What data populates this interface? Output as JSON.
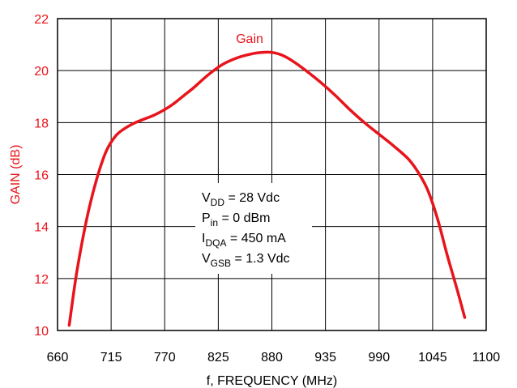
{
  "chart_data": {
    "type": "line",
    "title": "",
    "xlabel": "f, FREQUENCY (MHz)",
    "ylabel": "GAIN (dB)",
    "xlim": [
      660,
      1100
    ],
    "ylim": [
      10,
      22
    ],
    "x_ticks": [
      660,
      715,
      770,
      825,
      880,
      935,
      990,
      1045,
      1100
    ],
    "y_ticks": [
      10,
      12,
      14,
      16,
      18,
      20,
      22
    ],
    "grid": true,
    "series": [
      {
        "name": "Gain",
        "color": "#e8141b",
        "x": [
          672,
          680,
          690,
          700,
          710,
          720,
          730,
          740,
          750,
          760,
          770,
          780,
          790,
          800,
          815,
          830,
          845,
          860,
          870,
          880,
          890,
          900,
          915,
          930,
          945,
          960,
          975,
          990,
          1005,
          1020,
          1030,
          1040,
          1050,
          1060,
          1070,
          1078
        ],
        "y": [
          10.2,
          12.3,
          14.3,
          15.8,
          16.9,
          17.5,
          17.8,
          18.0,
          18.15,
          18.3,
          18.5,
          18.75,
          19.05,
          19.35,
          19.85,
          20.25,
          20.5,
          20.65,
          20.7,
          20.7,
          20.6,
          20.4,
          20.0,
          19.55,
          19.05,
          18.5,
          18.0,
          17.55,
          17.1,
          16.6,
          16.1,
          15.4,
          14.3,
          12.9,
          11.6,
          10.5
        ]
      }
    ],
    "annotations": {
      "conditions": [
        {
          "base": "V",
          "sub": "DD",
          "rest": " = 28 Vdc"
        },
        {
          "base": "P",
          "sub": "in",
          "rest": " = 0 dBm"
        },
        {
          "base": "I",
          "sub": "DQA",
          "rest": " = 450 mA"
        },
        {
          "base": "V",
          "sub": "GSB",
          "rest": " = 1.3 Vdc"
        }
      ]
    }
  }
}
